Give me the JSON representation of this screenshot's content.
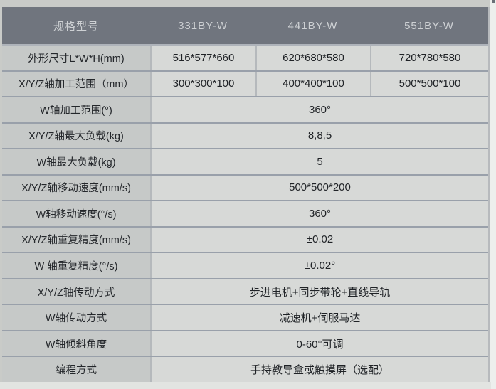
{
  "table": {
    "header": {
      "label": "规格型号",
      "models": [
        "331BY-W",
        "441BY-W",
        "551BY-W"
      ]
    },
    "rows": [
      {
        "label": "外形尺寸L*W*H(mm)",
        "values": [
          "516*577*660",
          "620*680*580",
          "720*780*580"
        ]
      },
      {
        "label": "X/Y/Z轴加工范围（mm）",
        "values": [
          "300*300*100",
          "400*400*100",
          "500*500*100"
        ]
      },
      {
        "label": "W轴加工范围(°)",
        "span": "360°"
      },
      {
        "label": "X/Y/Z轴最大负载(kg)",
        "span": "8,8,5"
      },
      {
        "label": "W轴最大负载(kg)",
        "span": "5"
      },
      {
        "label": "X/Y/Z轴移动速度(mm/s)",
        "span": "500*500*200"
      },
      {
        "label": "W轴移动速度(°/s)",
        "span": "360°"
      },
      {
        "label": "X/Y/Z轴重复精度(mm/s)",
        "span": "±0.02"
      },
      {
        "label": "W 轴重复精度(°/s)",
        "span": "±0.02°"
      },
      {
        "label": "X/Y/Z轴传动方式",
        "span": "步进电机+同步带轮+直线导轨"
      },
      {
        "label": "W轴传动方式",
        "span": "减速机+伺服马达"
      },
      {
        "label": "W轴倾斜角度",
        "span": "0-60°可调"
      },
      {
        "label": "编程方式",
        "span": "手持教导盒或触摸屏（选配）"
      }
    ],
    "colors": {
      "header_bg": "#70757e",
      "header_text": "#ced1d4",
      "label_cell_bg": "#c6c9c8",
      "value_cell_bg": "#d7d9d7",
      "row_border": "#99a0aa",
      "col_border": "#b5b9bc",
      "page_bg": "#c9cbc8",
      "cell_text": "#1f2226"
    }
  }
}
